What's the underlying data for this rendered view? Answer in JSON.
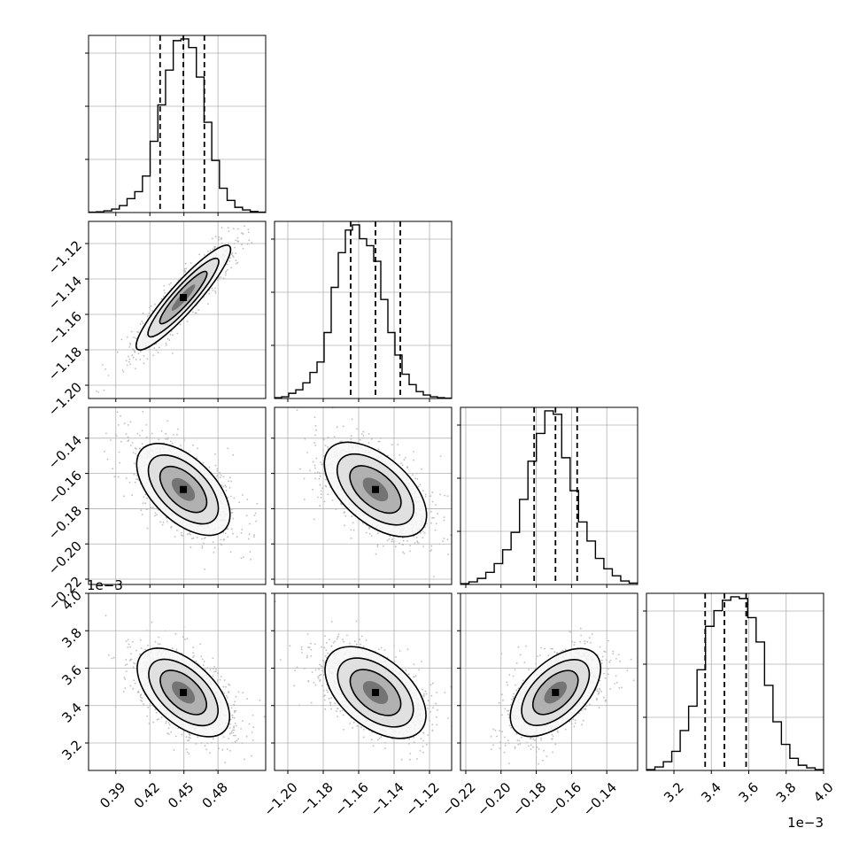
{
  "chart_data": {
    "type": "corner",
    "parameters": [
      {
        "ticks": [
          0.39,
          0.42,
          0.45,
          0.48
        ],
        "tick_labels": [
          "0.39",
          "0.42",
          "0.45",
          "0.48"
        ],
        "range": [
          0.366,
          0.522
        ],
        "quantiles": [
          0.429,
          0.4495,
          0.468
        ],
        "offset_label": "",
        "hist_counts": [
          0.2,
          0.4,
          1,
          2,
          4,
          8,
          12,
          21,
          41,
          62,
          82,
          99,
          100,
          95,
          78,
          52,
          30,
          14,
          7,
          3,
          1.5,
          0.6,
          0.2
        ]
      },
      {
        "ticks": [
          -1.2,
          -1.18,
          -1.16,
          -1.14,
          -1.12
        ],
        "tick_labels": [
          "−1.20",
          "−1.18",
          "−1.16",
          "−1.14",
          "−1.12"
        ],
        "range": [
          -1.2075,
          -1.1075
        ],
        "quantiles": [
          -1.1645,
          -1.1505,
          -1.1365
        ],
        "offset_label": "",
        "hist_counts": [
          0.5,
          1,
          3,
          5,
          9,
          15,
          21,
          38,
          64,
          84,
          97,
          100,
          92,
          88,
          79,
          57,
          38,
          25,
          14,
          8,
          4,
          2,
          1,
          0.5,
          0.2
        ]
      },
      {
        "ticks": [
          -0.22,
          -0.2,
          -0.18,
          -0.16,
          -0.14
        ],
        "tick_labels": [
          "−0.22",
          "−0.20",
          "−0.18",
          "−0.16",
          "−0.14"
        ],
        "range": [
          -0.223,
          -0.1225
        ],
        "quantiles": [
          -0.1812,
          -0.1691,
          -0.1568
        ],
        "offset_label": "",
        "hist_counts": [
          0.5,
          1.5,
          3.5,
          7,
          12,
          20,
          30,
          49,
          71,
          87,
          100,
          98,
          73,
          54,
          36,
          25,
          15,
          9,
          5,
          2,
          0.8
        ]
      },
      {
        "ticks": [
          3.2,
          3.4,
          3.6,
          3.8,
          4.0
        ],
        "tick_labels": [
          "3.2",
          "3.4",
          "3.6",
          "3.8",
          "4.0"
        ],
        "range": [
          3.0533,
          4.0
        ],
        "quantiles": [
          3.367,
          3.47,
          3.586
        ],
        "offset_label": "1e−3",
        "hist_counts": [
          0.5,
          2,
          5,
          11,
          23,
          37,
          58,
          83,
          92,
          98,
          100,
          99,
          88,
          74,
          49,
          28,
          15,
          7,
          3,
          1.5,
          0.5
        ]
      }
    ],
    "contour_levels": [
      "0.5",
      "1.0",
      "1.5",
      "2.0"
    ],
    "grid": true,
    "colors": {
      "line": "#000000",
      "grid": "#b0b0b0",
      "samples": "#bdbdbd"
    }
  }
}
